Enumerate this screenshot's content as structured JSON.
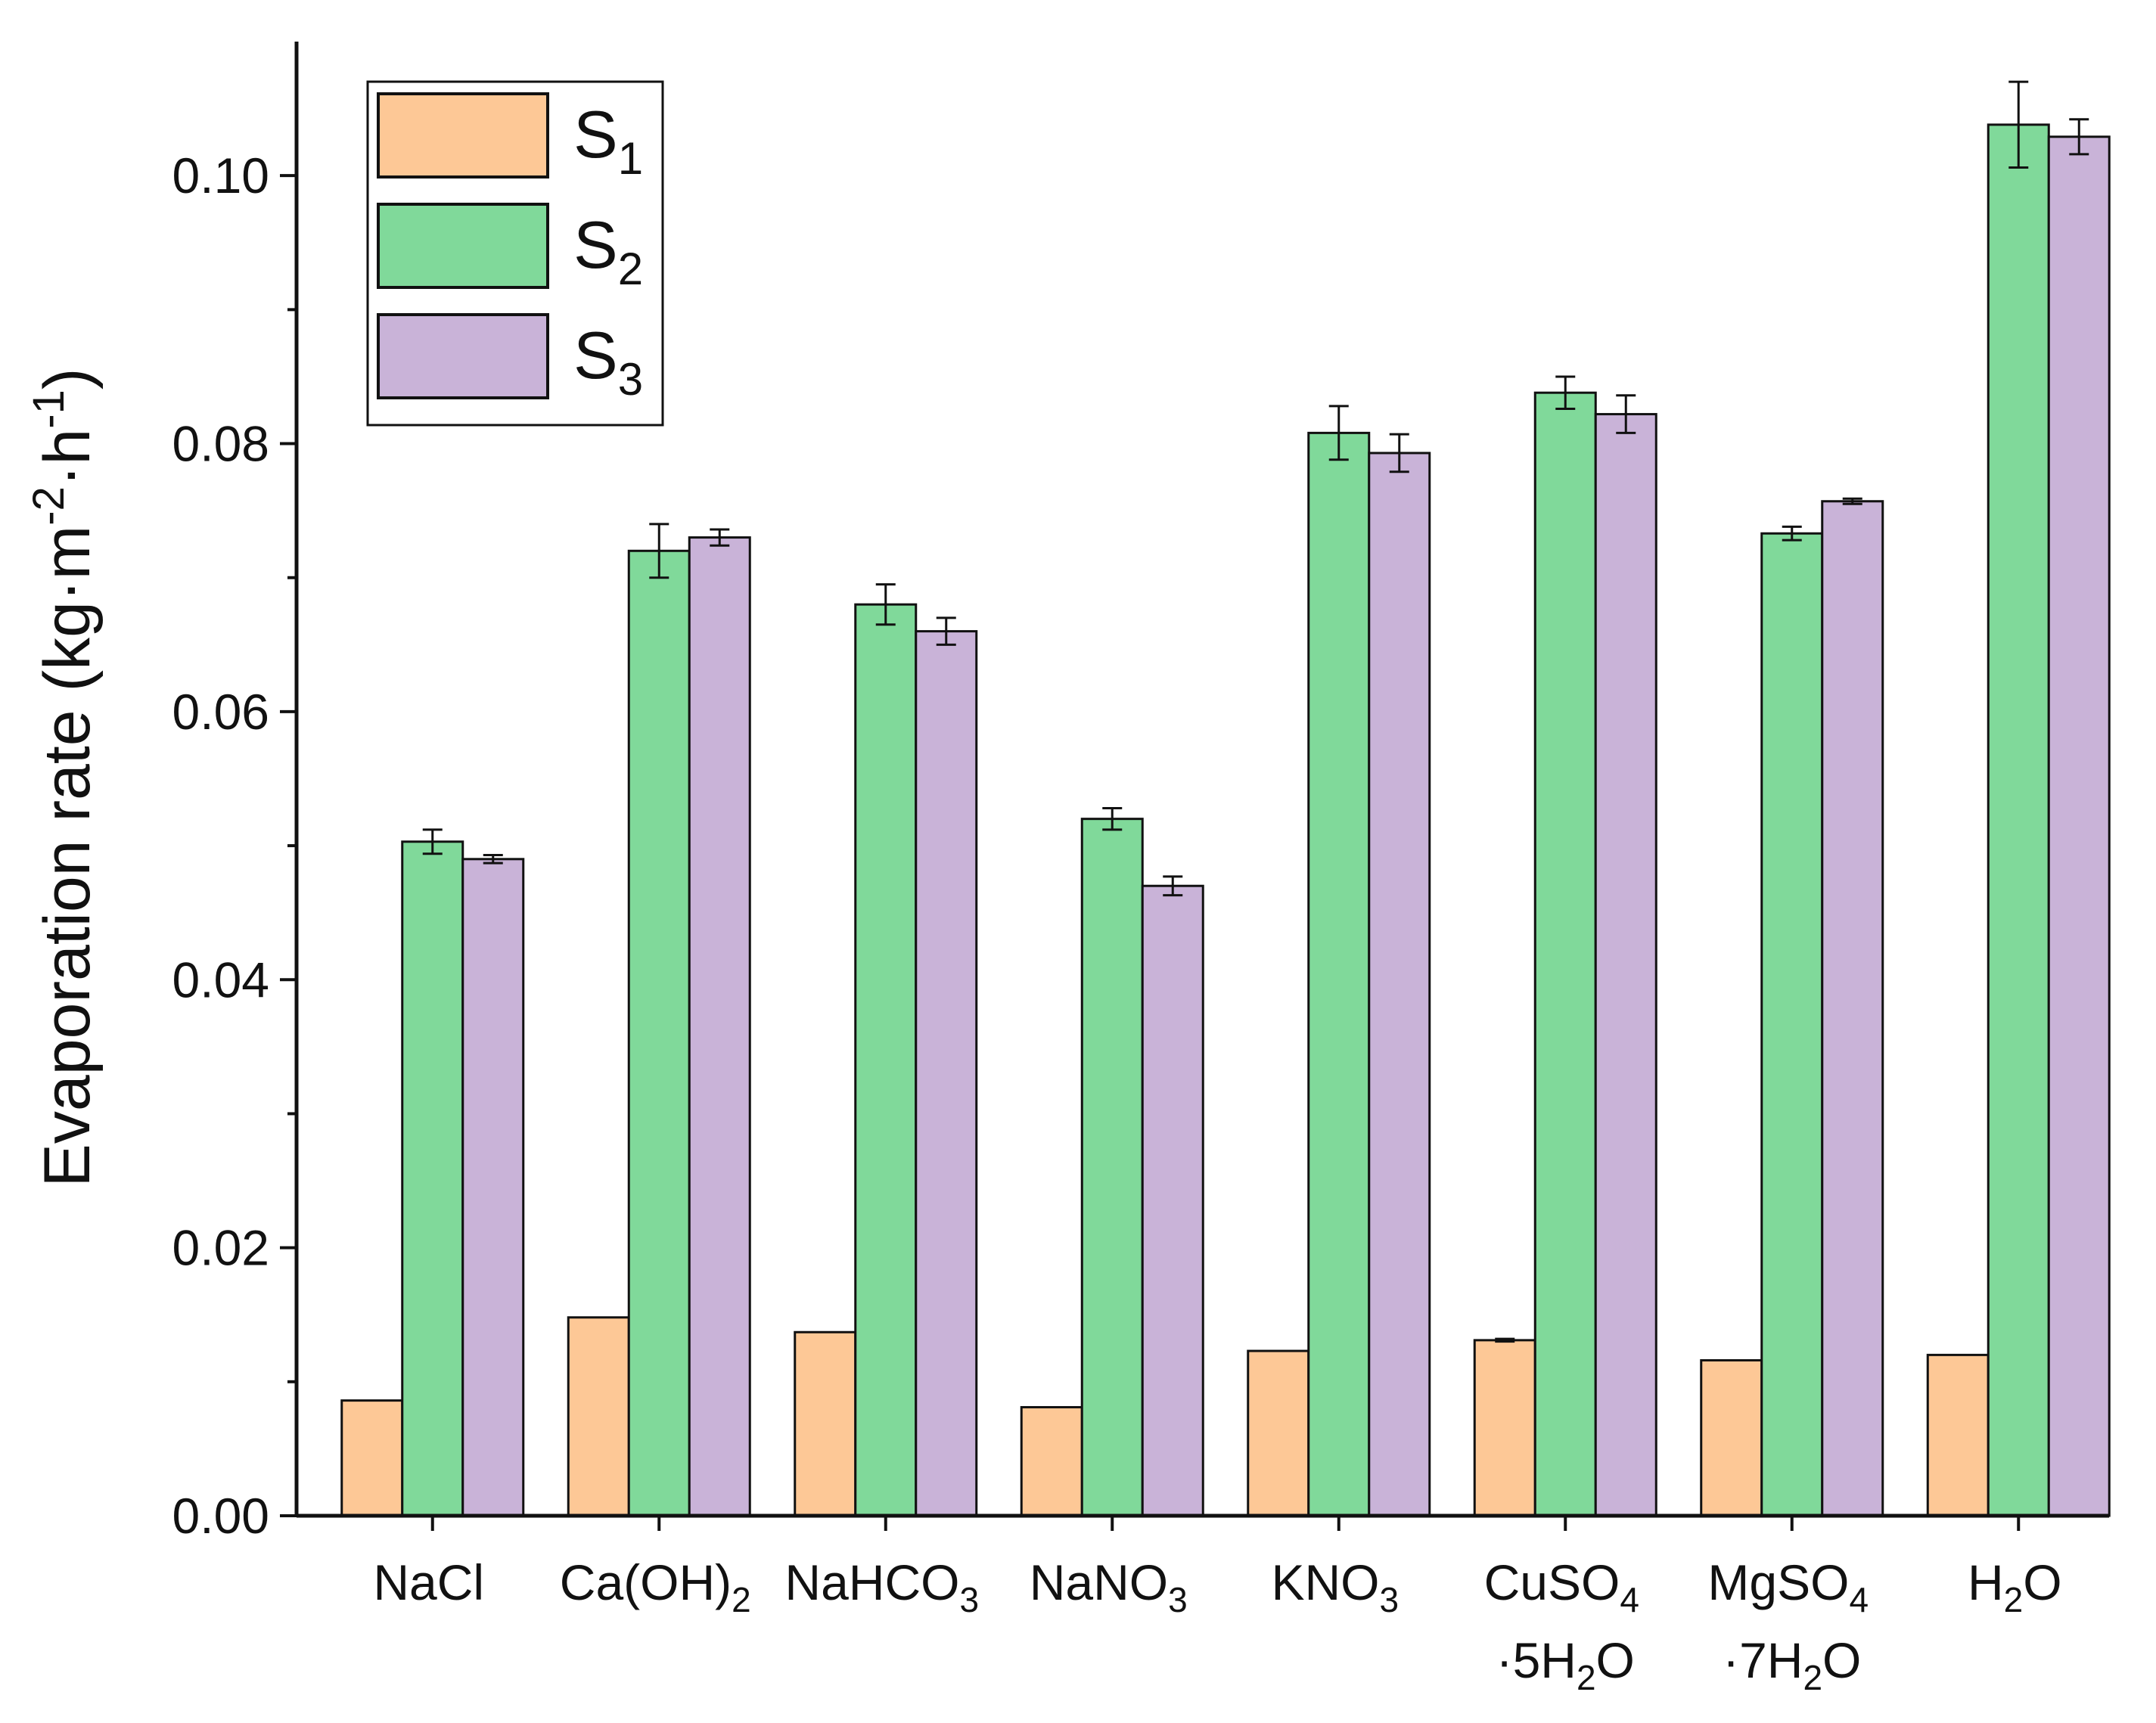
{
  "chart_data": {
    "type": "bar",
    "title": "",
    "xlabel": "",
    "ylabel": "Evaporation rate (kg·m",
    "ylabel_sup1": "-2",
    "ylabel_mid": "·h",
    "ylabel_sup2": "-1",
    "ylabel_end": ")",
    "ylim": [
      0,
      0.11
    ],
    "yticks": [
      "0.00",
      "0.02",
      "0.04",
      "0.06",
      "0.08",
      "0.10"
    ],
    "legend_position": "top-left",
    "categories": [
      {
        "main": "NaCl",
        "sub": "",
        "line2": "",
        "line2_sub": "",
        "line2_end": ""
      },
      {
        "main": "Ca(OH)",
        "sub": "2",
        "line2": "",
        "line2_sub": "",
        "line2_end": ""
      },
      {
        "main": "NaHCO",
        "sub": "3",
        "line2": "",
        "line2_sub": "",
        "line2_end": ""
      },
      {
        "main": "NaNO",
        "sub": "3",
        "line2": "",
        "line2_sub": "",
        "line2_end": ""
      },
      {
        "main": "KNO",
        "sub": "3",
        "line2": "",
        "line2_sub": "",
        "line2_end": ""
      },
      {
        "main": "CuSO",
        "sub": "4",
        "line2": "·5H",
        "line2_sub": "2",
        "line2_end": "O"
      },
      {
        "main": "MgSO",
        "sub": "4",
        "line2": "·7H",
        "line2_sub": "2",
        "line2_end": "O"
      },
      {
        "main": "H",
        "sub": "2",
        "line2": "",
        "line2_sub": "",
        "line2_end": "",
        "tail": "O"
      }
    ],
    "series": [
      {
        "name": "S",
        "name_sub": "1",
        "color": "#FDC896",
        "values": [
          0.0086,
          0.0148,
          0.0137,
          0.0081,
          0.0123,
          0.0131,
          0.0116,
          0.012
        ],
        "errors": [
          0,
          0,
          0,
          0,
          0,
          0.0001,
          0,
          0
        ]
      },
      {
        "name": "S",
        "name_sub": "2",
        "color": "#80D99A",
        "values": [
          0.0503,
          0.072,
          0.068,
          0.052,
          0.0808,
          0.0838,
          0.0733,
          0.1038
        ],
        "errors": [
          0.0009,
          0.002,
          0.0015,
          0.0008,
          0.002,
          0.0012,
          0.0005,
          0.0032
        ]
      },
      {
        "name": "S",
        "name_sub": "3",
        "color": "#C9B3D8",
        "values": [
          0.049,
          0.073,
          0.066,
          0.047,
          0.0793,
          0.0822,
          0.0757,
          0.1029
        ],
        "errors": [
          0.0003,
          0.0006,
          0.001,
          0.0007,
          0.0014,
          0.0014,
          0.0002,
          0.0013
        ]
      }
    ]
  }
}
